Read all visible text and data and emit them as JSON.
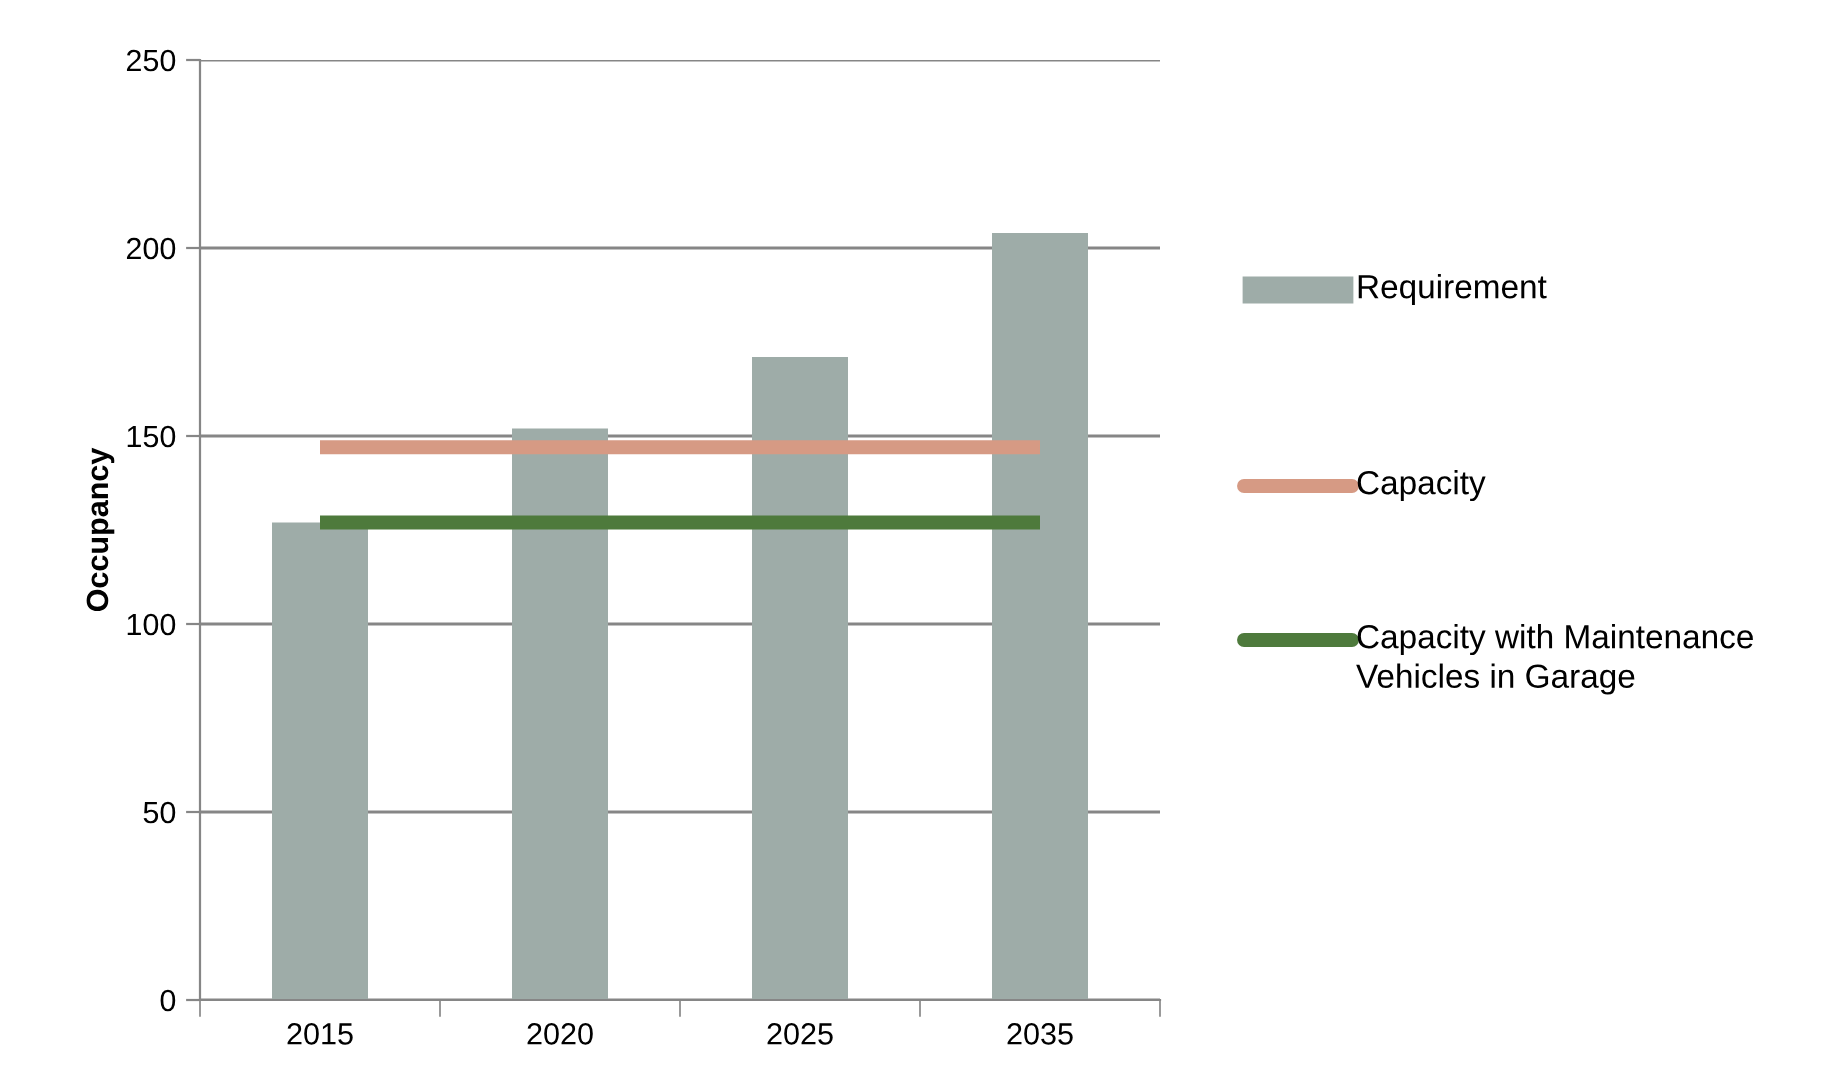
{
  "chart_data": {
    "type": "bar",
    "ylabel": "Occupancy",
    "categories": [
      "2015",
      "2020",
      "2025",
      "2035"
    ],
    "series": [
      {
        "name": "Requirement",
        "color": "#9eaca8",
        "values": [
          127,
          152,
          171,
          204
        ]
      },
      {
        "name": "Capacity",
        "type": "line",
        "color": "#d69a84",
        "values": [
          147,
          147,
          147,
          147
        ]
      },
      {
        "name": "Capacity with Maintenance Vehicles in Garage",
        "type": "line",
        "color": "#4e7a3c",
        "values": [
          127,
          127,
          127,
          127
        ]
      }
    ],
    "ylim": [
      0,
      250
    ],
    "yticks": [
      0,
      50,
      100,
      150,
      200,
      250
    ],
    "grid": "y",
    "legend": "right",
    "marker": "none",
    "line_style": "solid"
  }
}
